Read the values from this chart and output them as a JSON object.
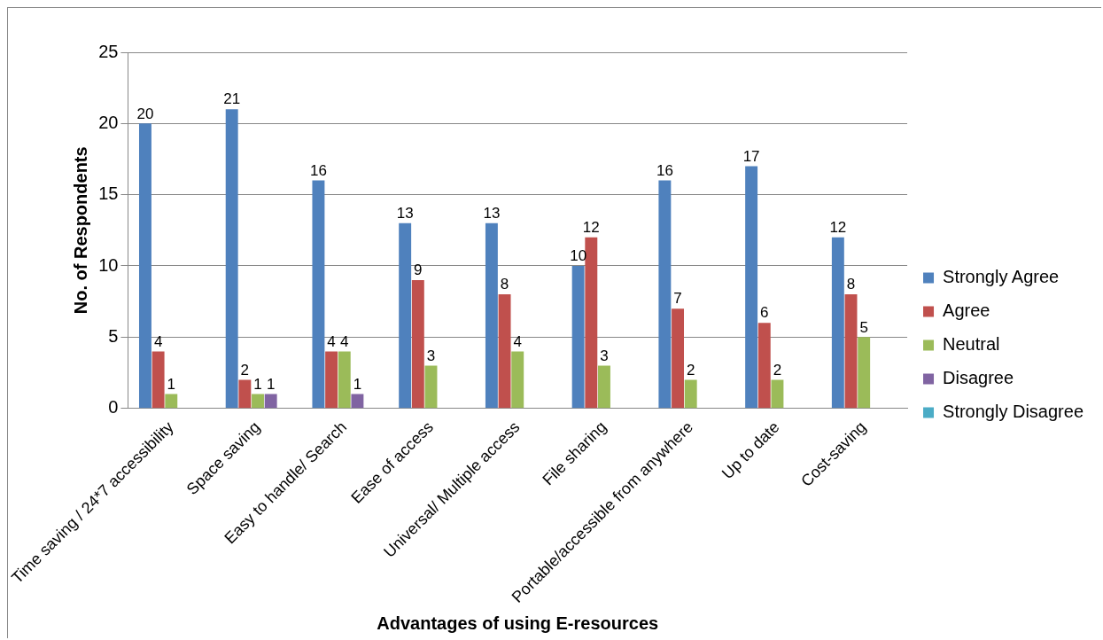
{
  "chart_data": {
    "type": "bar",
    "xlabel": "Advantages of using E-resources",
    "ylabel": "No. of Respondents",
    "categories": [
      "Time saving / 24*7 accessibility",
      "Space saving",
      "Easy to handle/ Search",
      "Ease of access",
      "Universal/ Multiple access",
      "File sharing",
      "Portable/accessible from anywhere",
      "Up to date",
      "Cost-saving"
    ],
    "series": [
      {
        "name": "Strongly Agree",
        "color": "#4f81bd",
        "values": [
          20,
          21,
          16,
          13,
          13,
          10,
          16,
          17,
          12
        ],
        "value_labels": [
          "20",
          "21",
          "16",
          "13",
          "13",
          "10",
          "16",
          "17",
          "12"
        ]
      },
      {
        "name": "Agree",
        "color": "#c0504d",
        "values": [
          4,
          2,
          4,
          9,
          8,
          12,
          7,
          6,
          8
        ],
        "value_labels": [
          "4",
          "2",
          "4",
          "9",
          "8",
          "12",
          "7",
          "6",
          "8"
        ]
      },
      {
        "name": "Neutral",
        "color": "#9bbb59",
        "values": [
          1,
          1,
          4,
          3,
          4,
          3,
          2,
          2,
          5
        ],
        "value_labels": [
          "1",
          "1",
          "4",
          "3",
          "4",
          "3",
          "2",
          "2",
          "5"
        ]
      },
      {
        "name": "Disagree",
        "color": "#8064a2",
        "values": [
          0,
          1,
          1,
          0,
          0,
          0,
          0,
          0,
          0
        ],
        "value_labels": [
          null,
          "1",
          "1",
          null,
          null,
          null,
          null,
          null,
          null
        ]
      },
      {
        "name": "Strongly Disagree",
        "color": "#4bacc6",
        "values": [
          0,
          0,
          0,
          0,
          0,
          0,
          0,
          0,
          0
        ],
        "value_labels": [
          null,
          null,
          null,
          null,
          null,
          null,
          null,
          null,
          null
        ]
      }
    ],
    "ylim": [
      0,
      25
    ],
    "yticks": [
      0,
      5,
      10,
      15,
      20,
      25
    ],
    "grid": "y",
    "legend": "right"
  }
}
